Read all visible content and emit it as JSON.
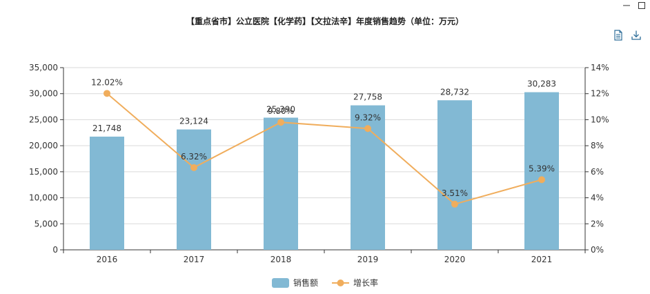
{
  "window": {
    "controls": [
      "minimize-icon",
      "maximize-icon"
    ]
  },
  "toolbar": {
    "icons": [
      "data-view-icon",
      "download-icon"
    ]
  },
  "colors": {
    "bar": "#82b9d4",
    "line": "#f0ad5c",
    "axis": "#333333",
    "grid": "#d9d9d9",
    "text": "#333333"
  },
  "chart_data": {
    "type": "bar",
    "title": "【重点省市】公立医院【化学药】【文拉法辛】年度销售趋势（单位：万元）",
    "categories": [
      "2016",
      "2017",
      "2018",
      "2019",
      "2020",
      "2021"
    ],
    "series": [
      {
        "name": "销售额",
        "type": "bar",
        "axis": "left",
        "values": [
          21748,
          23124,
          25390,
          27758,
          28732,
          30283
        ],
        "labels": [
          "21,748",
          "23,124",
          "25,390",
          "27,758",
          "28,732",
          "30,283"
        ]
      },
      {
        "name": "增长率",
        "type": "line",
        "axis": "right",
        "values": [
          12.02,
          6.32,
          9.8,
          9.32,
          3.51,
          5.39
        ],
        "labels": [
          "12.02%",
          "6.32%",
          "9.80%",
          "9.32%",
          "3.51%",
          "5.39%"
        ]
      }
    ],
    "y_left": {
      "min": 0,
      "max": 35000,
      "ticks": [
        "0",
        "5,000",
        "10,000",
        "15,000",
        "20,000",
        "25,000",
        "30,000",
        "35,000"
      ]
    },
    "y_right": {
      "min": 0,
      "max": 14,
      "ticks": [
        "0%",
        "2%",
        "4%",
        "6%",
        "8%",
        "10%",
        "12%",
        "14%"
      ]
    },
    "grid": true,
    "legend": "bottom-center"
  }
}
